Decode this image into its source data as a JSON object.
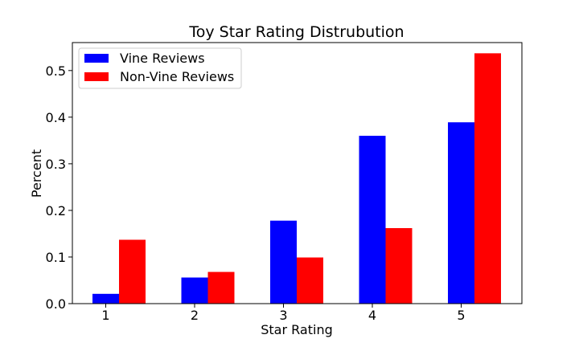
{
  "chart_data": {
    "type": "bar",
    "title": "Toy Star Rating Distrubution",
    "xlabel": "Star Rating",
    "ylabel": "Percent",
    "categories": [
      "1",
      "2",
      "3",
      "4",
      "5"
    ],
    "series": [
      {
        "name": "Vine Reviews",
        "color": "#0000ff",
        "values": [
          0.021,
          0.056,
          0.178,
          0.36,
          0.389
        ]
      },
      {
        "name": "Non-Vine Reviews",
        "color": "#ff0000",
        "values": [
          0.137,
          0.068,
          0.099,
          0.162,
          0.537
        ]
      }
    ],
    "ylim": [
      0,
      0.56
    ],
    "yticks": [
      0.0,
      0.1,
      0.2,
      0.3,
      0.4,
      0.5
    ],
    "ytick_labels": [
      "0.0",
      "0.1",
      "0.2",
      "0.3",
      "0.4",
      "0.5"
    ],
    "grid": false,
    "legend_position": "upper-left"
  }
}
